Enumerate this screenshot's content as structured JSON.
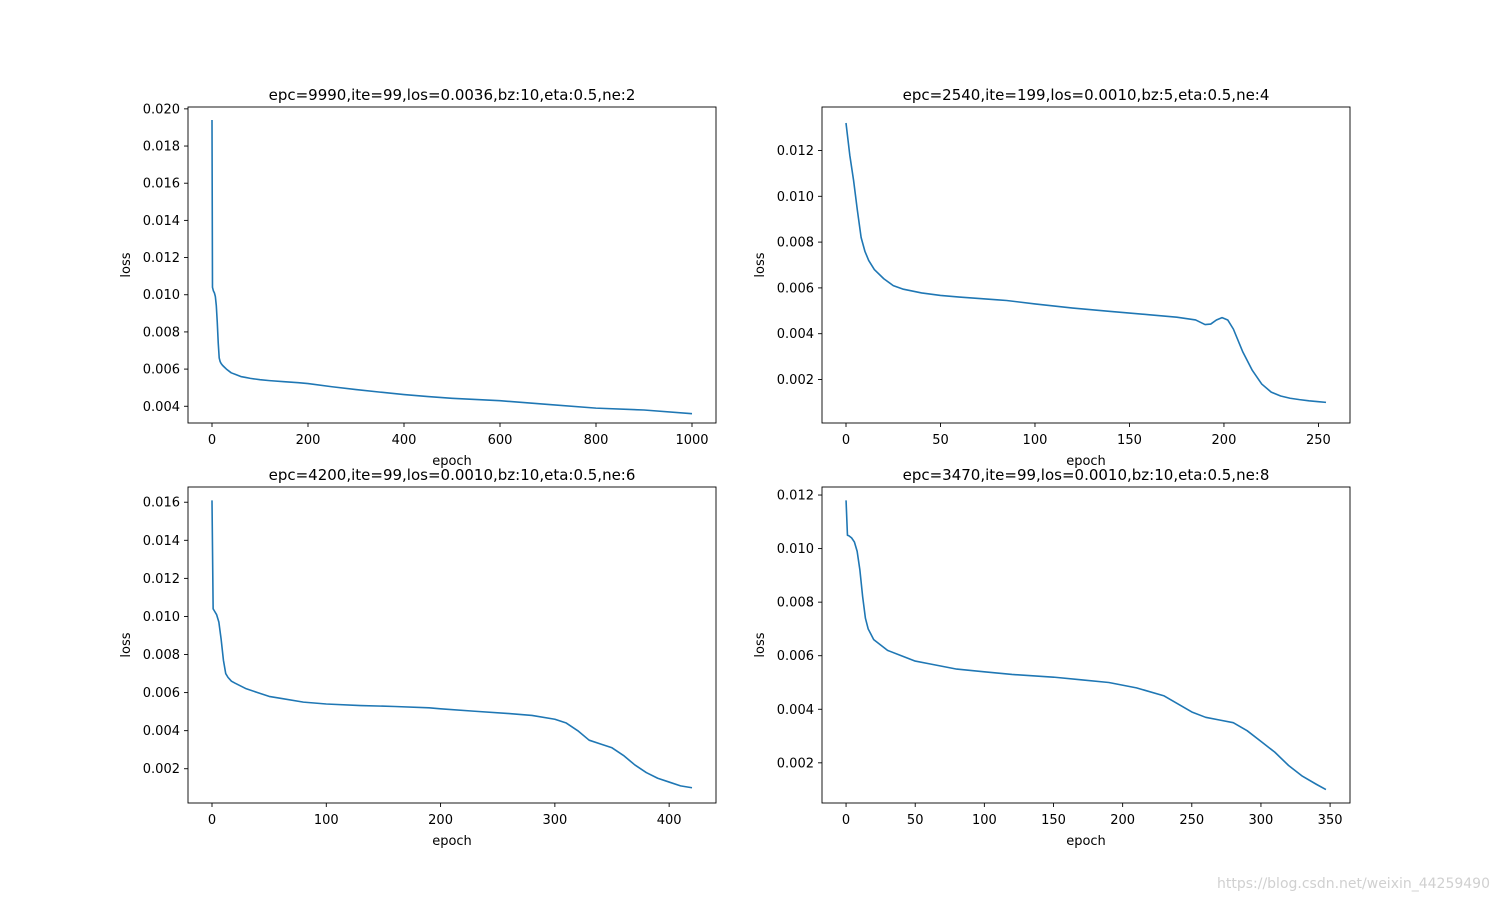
{
  "watermark": "https://blog.csdn.net/weixin_44259490",
  "line_color": "#1f77b4",
  "chart_data": [
    {
      "type": "line",
      "title": "epc=9990,ite=99,los=0.0036,bz:10,eta:0.5,ne:2",
      "xlabel": "epoch",
      "ylabel": "loss",
      "xlim": [
        -50,
        1050
      ],
      "ylim": [
        0.0031,
        0.0201
      ],
      "xticks": [
        0,
        200,
        400,
        600,
        800,
        1000
      ],
      "xtick_labels": [
        "0",
        "200",
        "400",
        "600",
        "800",
        "1000"
      ],
      "yticks": [
        0.004,
        0.006,
        0.008,
        0.01,
        0.012,
        0.014,
        0.016,
        0.018,
        0.02
      ],
      "ytick_labels": [
        "0.004",
        "0.006",
        "0.008",
        "0.010",
        "0.012",
        "0.014",
        "0.016",
        "0.018",
        "0.020"
      ],
      "x": [
        0,
        1,
        2,
        3,
        5,
        7,
        9,
        11,
        13,
        15,
        17,
        19,
        22,
        26,
        30,
        40,
        50,
        60,
        70,
        80,
        100,
        120,
        150,
        180,
        200,
        250,
        300,
        350,
        400,
        450,
        500,
        600,
        700,
        800,
        900,
        1000
      ],
      "y": [
        0.0194,
        0.0104,
        0.0103,
        0.0102,
        0.0101,
        0.0099,
        0.0094,
        0.0085,
        0.0074,
        0.0066,
        0.0064,
        0.0063,
        0.0062,
        0.0061,
        0.006,
        0.0058,
        0.0057,
        0.0056,
        0.00555,
        0.0055,
        0.00543,
        0.00538,
        0.00532,
        0.00527,
        0.00522,
        0.00505,
        0.0049,
        0.00476,
        0.00463,
        0.00452,
        0.00443,
        0.0043,
        0.0041,
        0.0039,
        0.0038,
        0.0036
      ]
    },
    {
      "type": "line",
      "title": "epc=2540,ite=199,los=0.0010,bz:5,eta:0.5,ne:4",
      "xlabel": "epoch",
      "ylabel": "loss",
      "xlim": [
        -12.7,
        266.7
      ],
      "ylim": [
        0.0001,
        0.0139
      ],
      "xticks": [
        0,
        50,
        100,
        150,
        200,
        250
      ],
      "xtick_labels": [
        "0",
        "50",
        "100",
        "150",
        "200",
        "250"
      ],
      "yticks": [
        0.002,
        0.004,
        0.006,
        0.008,
        0.01,
        0.012
      ],
      "ytick_labels": [
        "0.002",
        "0.004",
        "0.006",
        "0.008",
        "0.010",
        "0.012"
      ],
      "x": [
        0,
        1,
        2,
        4,
        6,
        8,
        10,
        12,
        15,
        20,
        25,
        30,
        40,
        50,
        60,
        70,
        80,
        85,
        100,
        120,
        140,
        160,
        175,
        185,
        190,
        193,
        196,
        199,
        202,
        205,
        210,
        215,
        220,
        225,
        230,
        235,
        240,
        245,
        250,
        254
      ],
      "y": [
        0.0132,
        0.0125,
        0.0118,
        0.0107,
        0.0094,
        0.0082,
        0.0076,
        0.0072,
        0.0068,
        0.0064,
        0.0061,
        0.00595,
        0.00578,
        0.00567,
        0.0056,
        0.00554,
        0.00548,
        0.00545,
        0.0053,
        0.00512,
        0.00497,
        0.00483,
        0.00472,
        0.0046,
        0.0044,
        0.00442,
        0.0046,
        0.0047,
        0.0046,
        0.0042,
        0.0032,
        0.0024,
        0.0018,
        0.00145,
        0.00128,
        0.00118,
        0.00112,
        0.00107,
        0.00103,
        0.001
      ]
    },
    {
      "type": "line",
      "title": "epc=4200,ite=99,los=0.0010,bz:10,eta:0.5,ne:6",
      "xlabel": "epoch",
      "ylabel": "loss",
      "xlim": [
        -21,
        441
      ],
      "ylim": [
        0.0002,
        0.0168
      ],
      "xticks": [
        0,
        100,
        200,
        300,
        400
      ],
      "xtick_labels": [
        "0",
        "100",
        "200",
        "300",
        "400"
      ],
      "yticks": [
        0.002,
        0.004,
        0.006,
        0.008,
        0.01,
        0.012,
        0.014,
        0.016
      ],
      "ytick_labels": [
        "0.002",
        "0.004",
        "0.006",
        "0.008",
        "0.010",
        "0.012",
        "0.014",
        "0.016"
      ],
      "x": [
        0,
        1,
        2,
        4,
        6,
        8,
        10,
        12,
        14,
        17,
        20,
        25,
        30,
        40,
        50,
        60,
        80,
        100,
        130,
        160,
        190,
        200,
        230,
        260,
        280,
        300,
        310,
        320,
        330,
        340,
        350,
        360,
        370,
        380,
        390,
        400,
        410,
        420
      ],
      "y": [
        0.0161,
        0.0104,
        0.0103,
        0.0101,
        0.0097,
        0.0088,
        0.0077,
        0.007,
        0.0068,
        0.0066,
        0.0065,
        0.00635,
        0.0062,
        0.006,
        0.0058,
        0.0057,
        0.0055,
        0.0054,
        0.00532,
        0.00527,
        0.0052,
        0.00515,
        0.00502,
        0.0049,
        0.0048,
        0.0046,
        0.0044,
        0.004,
        0.0035,
        0.0033,
        0.0031,
        0.0027,
        0.0022,
        0.0018,
        0.0015,
        0.0013,
        0.0011,
        0.001
      ]
    },
    {
      "type": "line",
      "title": "epc=3470,ite=99,los=0.0010,bz:10,eta:0.5,ne:8",
      "xlabel": "epoch",
      "ylabel": "loss",
      "xlim": [
        -17.4,
        364.4
      ],
      "ylim": [
        0.0005,
        0.0123
      ],
      "xticks": [
        0,
        50,
        100,
        150,
        200,
        250,
        300,
        350
      ],
      "xtick_labels": [
        "0",
        "50",
        "100",
        "150",
        "200",
        "250",
        "300",
        "350"
      ],
      "yticks": [
        0.002,
        0.004,
        0.006,
        0.008,
        0.01,
        0.012
      ],
      "ytick_labels": [
        "0.002",
        "0.004",
        "0.006",
        "0.008",
        "0.010",
        "0.012"
      ],
      "x": [
        0,
        1,
        2,
        4,
        6,
        8,
        10,
        12,
        14,
        16,
        18,
        20,
        25,
        30,
        40,
        50,
        60,
        80,
        100,
        120,
        150,
        170,
        190,
        210,
        230,
        240,
        250,
        260,
        270,
        280,
        290,
        300,
        310,
        320,
        330,
        340,
        347
      ],
      "y": [
        0.0118,
        0.0105,
        0.01048,
        0.0104,
        0.01025,
        0.0099,
        0.0092,
        0.0082,
        0.0074,
        0.007,
        0.0068,
        0.0066,
        0.0064,
        0.0062,
        0.006,
        0.0058,
        0.0057,
        0.0055,
        0.0054,
        0.0053,
        0.0052,
        0.0051,
        0.005,
        0.0048,
        0.0045,
        0.0042,
        0.0039,
        0.0037,
        0.0036,
        0.0035,
        0.0032,
        0.0028,
        0.0024,
        0.0019,
        0.0015,
        0.0012,
        0.001
      ]
    }
  ]
}
